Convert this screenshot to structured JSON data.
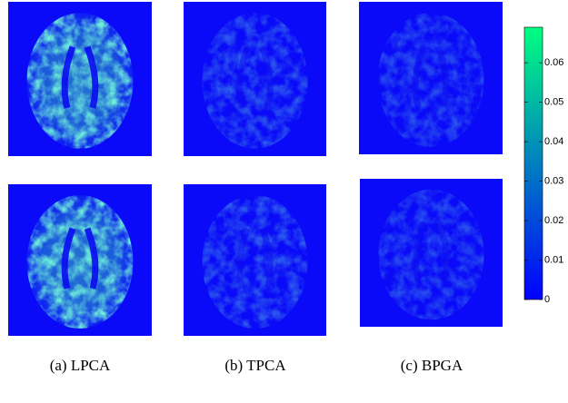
{
  "colorbar": {
    "lim": [
      0,
      0.069
    ],
    "ticks": [
      0,
      0.01,
      0.02,
      0.03,
      0.04,
      0.05,
      0.06
    ]
  },
  "captions": [
    "(a) LPCA",
    "(b) TPCA",
    "(c) BPGA"
  ]
}
